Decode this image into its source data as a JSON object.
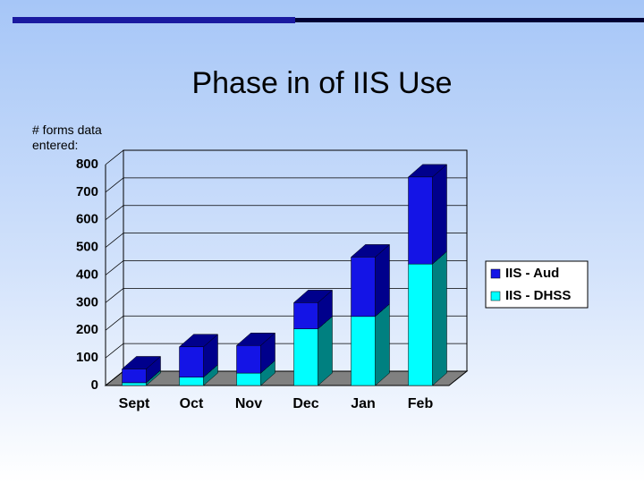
{
  "chart_data": {
    "type": "bar3d_stacked",
    "title": "Phase in of IIS Use",
    "y_label": "# forms data entered:",
    "categories": [
      "Sept",
      "Oct",
      "Nov",
      "Dec",
      "Jan",
      "Feb"
    ],
    "series": [
      {
        "name": "IIS - Aud",
        "color": "#1414e6",
        "side_color": "#00008c",
        "values": [
          50,
          110,
          100,
          95,
          215,
          315
        ]
      },
      {
        "name": "IIS - DHSS",
        "color": "#00ffff",
        "side_color": "#008080",
        "values": [
          10,
          30,
          45,
          205,
          250,
          440
        ]
      }
    ],
    "ylim": [
      0,
      800
    ],
    "yticks": [
      0,
      100,
      200,
      300,
      400,
      500,
      600,
      700,
      800
    ],
    "grid": true,
    "legend": "right"
  }
}
